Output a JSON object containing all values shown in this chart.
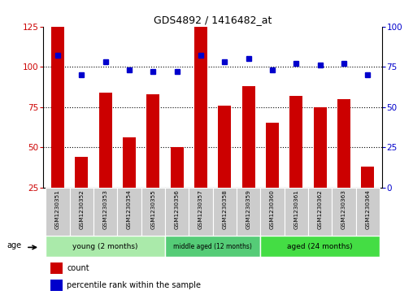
{
  "title": "GDS4892 / 1416482_at",
  "samples": [
    "GSM1230351",
    "GSM1230352",
    "GSM1230353",
    "GSM1230354",
    "GSM1230355",
    "GSM1230356",
    "GSM1230357",
    "GSM1230358",
    "GSM1230359",
    "GSM1230360",
    "GSM1230361",
    "GSM1230362",
    "GSM1230363",
    "GSM1230364"
  ],
  "counts": [
    125,
    44,
    84,
    56,
    83,
    50,
    125,
    76,
    88,
    65,
    82,
    75,
    80,
    38
  ],
  "percentile_pct": [
    82,
    70,
    78,
    73,
    72,
    72,
    82,
    78,
    80,
    73,
    77,
    76,
    77,
    70
  ],
  "groups": [
    {
      "label": "young (2 months)",
      "start": 0,
      "end": 5,
      "color": "#AAEAAA"
    },
    {
      "label": "middle aged (12 months)",
      "start": 5,
      "end": 9,
      "color": "#55CC77"
    },
    {
      "label": "aged (24 months)",
      "start": 9,
      "end": 14,
      "color": "#44DD44"
    }
  ],
  "ylim_left": [
    25,
    125
  ],
  "ylim_right": [
    0,
    100
  ],
  "bar_color": "#CC0000",
  "dot_color": "#0000CC",
  "bg_color": "#FFFFFF",
  "tick_label_color_left": "#CC0000",
  "tick_label_color_right": "#0000CC",
  "legend_count_label": "count",
  "legend_pct_label": "percentile rank within the sample",
  "left_yticks": [
    25,
    50,
    75,
    100,
    125
  ],
  "right_yticks": [
    0,
    25,
    50,
    75,
    100
  ],
  "grid_yticks": [
    50,
    75,
    100
  ]
}
